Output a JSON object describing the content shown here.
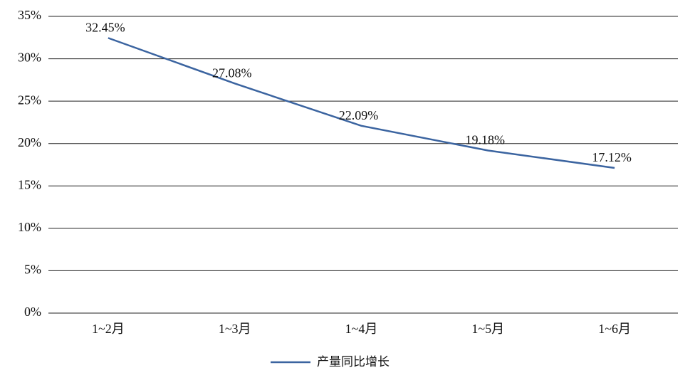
{
  "chart_data": {
    "type": "line",
    "categories": [
      "1~2月",
      "1~3月",
      "1~4月",
      "1~5月",
      "1~6月"
    ],
    "series": [
      {
        "name": "产量同比增长",
        "color": "#3b64a0",
        "values": [
          32.45,
          27.08,
          22.09,
          19.18,
          17.12
        ],
        "value_labels": [
          "32.45%",
          "27.08%",
          "22.09%",
          "19.18%",
          "17.12%"
        ]
      }
    ],
    "ylim": [
      0,
      35
    ],
    "yticks": [
      {
        "value": 0,
        "label": "0%"
      },
      {
        "value": 5,
        "label": "5%"
      },
      {
        "value": 10,
        "label": "10%"
      },
      {
        "value": 15,
        "label": "15%"
      },
      {
        "value": 20,
        "label": "20%"
      },
      {
        "value": 25,
        "label": "25%"
      },
      {
        "value": 30,
        "label": "30%"
      },
      {
        "value": 35,
        "label": "35%"
      }
    ],
    "grid": true,
    "legend": "bottom"
  }
}
